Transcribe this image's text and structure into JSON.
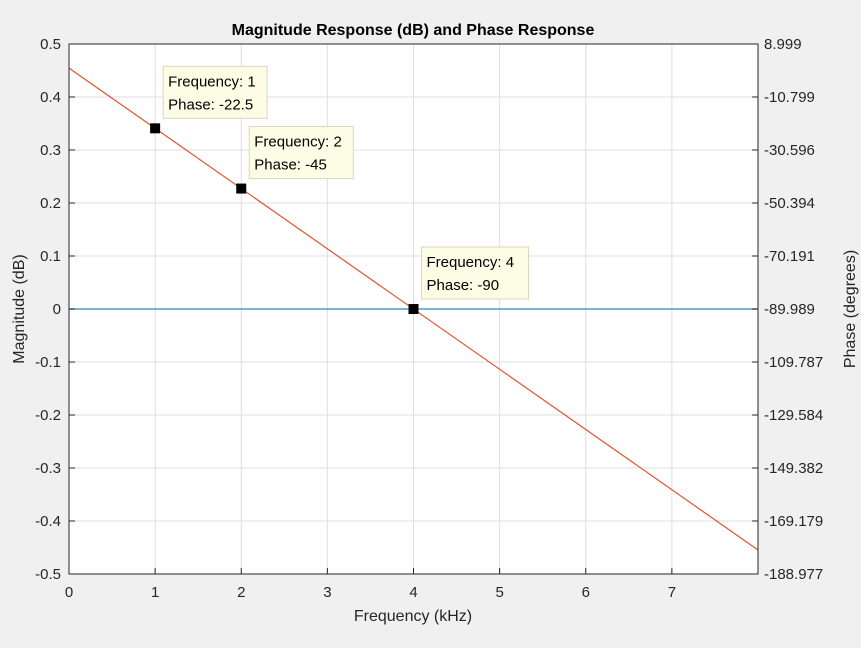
{
  "chart_data": {
    "type": "line",
    "title": "Magnitude Response (dB) and Phase Response",
    "xlabel": "Frequency (kHz)",
    "ylabel_left": "Magnitude (dB)",
    "ylabel_right": "Phase (degrees)",
    "xlim": [
      0,
      8
    ],
    "ylim_left": [
      -0.5,
      0.5
    ],
    "ylim_right": [
      -188.977,
      8.999
    ],
    "grid": true,
    "x_ticks": [
      "0",
      "1",
      "2",
      "3",
      "4",
      "5",
      "6",
      "7"
    ],
    "x_tick_values": [
      0,
      1,
      2,
      3,
      4,
      5,
      6,
      7
    ],
    "y_left_ticks": [
      "0.5",
      "0.4",
      "0.3",
      "0.2",
      "0.1",
      "0",
      "-0.1",
      "-0.2",
      "-0.3",
      "-0.4",
      "-0.5"
    ],
    "y_left_tick_values": [
      0.5,
      0.4,
      0.3,
      0.2,
      0.1,
      0,
      -0.1,
      -0.2,
      -0.3,
      -0.4,
      -0.5
    ],
    "y_right_ticks": [
      "8.999",
      "-10.799",
      "-30.596",
      "-50.394",
      "-70.191",
      "-89.989",
      "-109.787",
      "-129.584",
      "-149.382",
      "-169.179",
      "-188.977"
    ],
    "y_right_tick_values": [
      8.999,
      -10.799,
      -30.596,
      -50.394,
      -70.191,
      -89.989,
      -109.787,
      -129.584,
      -149.382,
      -169.179,
      -188.977
    ],
    "series": [
      {
        "name": "Magnitude",
        "axis": "left",
        "color": "#4a9bc7",
        "x": [
          0,
          8
        ],
        "y": [
          0,
          0
        ]
      },
      {
        "name": "Phase",
        "axis": "right",
        "color": "#e0552a",
        "x": [
          0,
          8
        ],
        "y": [
          0,
          -180
        ]
      }
    ],
    "markers": [
      {
        "x": 1,
        "y": -22.5,
        "axis": "right",
        "line1": "Frequency: 1",
        "line2": "Phase: -22.5"
      },
      {
        "x": 2,
        "y": -45,
        "axis": "right",
        "line1": "Frequency: 2",
        "line2": "Phase: -45"
      },
      {
        "x": 4,
        "y": -90,
        "axis": "right",
        "line1": "Frequency: 4",
        "line2": "Phase: -90"
      }
    ]
  }
}
